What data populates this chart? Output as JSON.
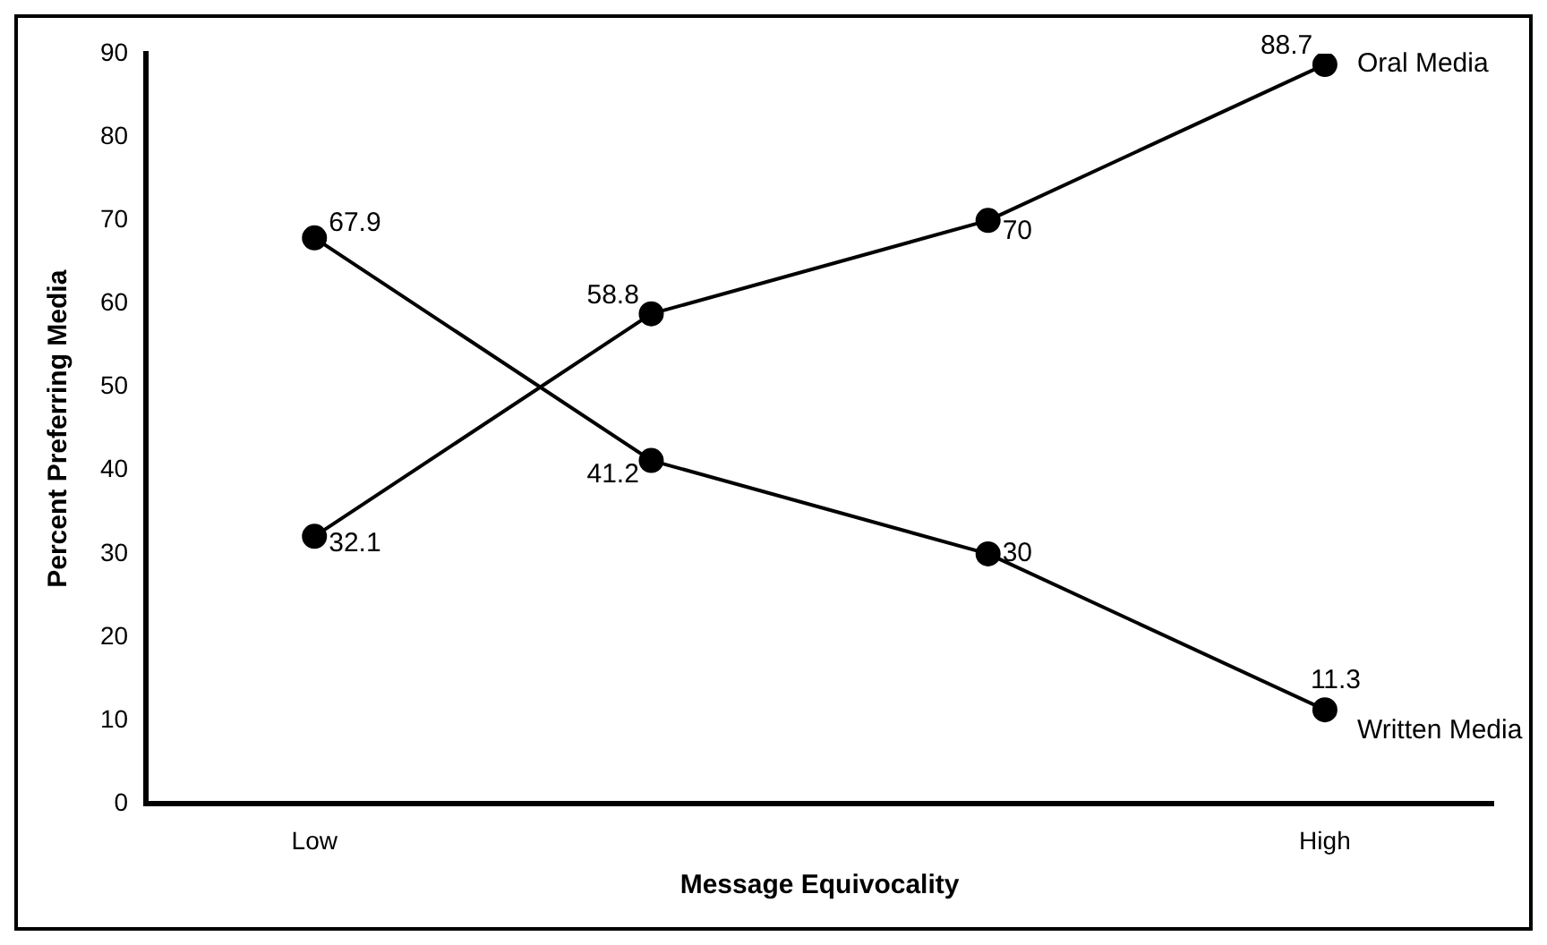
{
  "chart_data": {
    "type": "line",
    "xlabel": "Message Equivocality",
    "ylabel": "Percent Preferring Media",
    "categories": [
      "Low",
      null,
      null,
      "High"
    ],
    "series": [
      {
        "name": "Oral Media",
        "color": "#000000",
        "values": [
          32.1,
          58.8,
          70,
          88.7
        ]
      },
      {
        "name": "Written Media",
        "color": "#000000",
        "values": [
          67.9,
          41.2,
          30,
          11.3
        ]
      }
    ],
    "ylim": [
      0,
      90
    ],
    "yticks": [
      0,
      10,
      20,
      30,
      40,
      50,
      60,
      70,
      80,
      90
    ],
    "grid": false,
    "legend": false,
    "marker": "circle",
    "line_style": "solid",
    "data_labels": true
  }
}
